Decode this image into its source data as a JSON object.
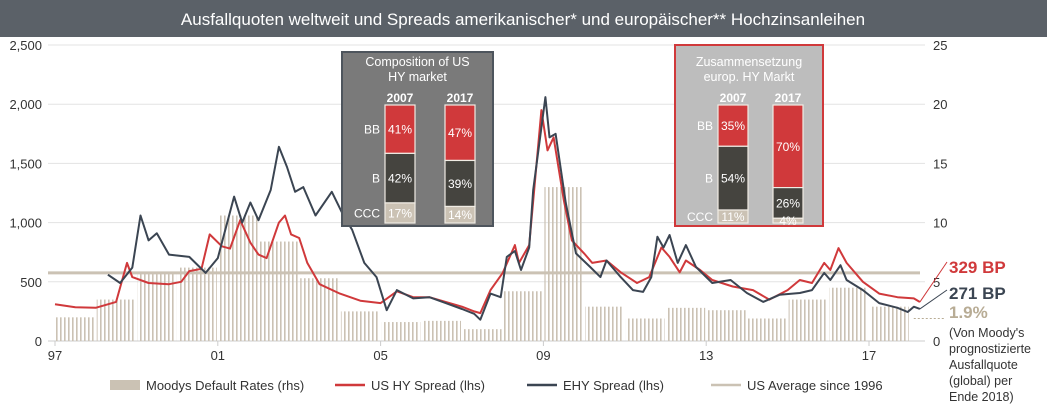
{
  "chart_data": {
    "type": "line",
    "title": "Ausfallquoten weltweit und Spreads amerikanischer* und europäischer** Hochzinsanleihen",
    "y_left": {
      "ylim": [
        0,
        2500
      ],
      "ticks": [
        "0",
        "500",
        "1,000",
        "1,500",
        "2,000",
        "2,500"
      ]
    },
    "y_right": {
      "ylim": [
        0,
        25
      ],
      "ticks": [
        "0",
        "5",
        "10",
        "15",
        "20",
        "25"
      ]
    },
    "x": {
      "xlim": [
        1997,
        2018.4
      ],
      "ticks": [
        {
          "v": 1997,
          "label": "97"
        },
        {
          "v": 2001,
          "label": "01"
        },
        {
          "v": 2005,
          "label": "05"
        },
        {
          "v": 2009,
          "label": "09"
        },
        {
          "v": 2013,
          "label": "13"
        },
        {
          "v": 2017,
          "label": "17"
        }
      ]
    },
    "grid": true,
    "legend_position": "bottom",
    "series": [
      {
        "name": "Moodys Default Rates (rhs)",
        "type": "bar",
        "axis": "right",
        "color": "#cbc2b4",
        "years": [
          1997,
          1998,
          1999,
          2000,
          2001,
          2002,
          2003,
          2004,
          2005,
          2006,
          2007,
          2008,
          2009,
          2010,
          2011,
          2012,
          2013,
          2014,
          2015,
          2016,
          2017
        ],
        "values": [
          2.0,
          3.5,
          5.7,
          6.2,
          10.6,
          8.4,
          5.3,
          2.5,
          1.6,
          1.7,
          1.0,
          4.2,
          13.0,
          2.9,
          1.9,
          2.8,
          2.6,
          1.9,
          3.5,
          4.5,
          2.9
        ]
      },
      {
        "name": "US HY Spread (lhs)",
        "type": "line",
        "axis": "left",
        "color": "#d0393b",
        "points": [
          [
            1997.0,
            310
          ],
          [
            1997.5,
            285
          ],
          [
            1998.0,
            280
          ],
          [
            1998.5,
            330
          ],
          [
            1998.77,
            660
          ],
          [
            1998.9,
            540
          ],
          [
            1999.3,
            490
          ],
          [
            1999.8,
            480
          ],
          [
            2000.1,
            500
          ],
          [
            2000.3,
            590
          ],
          [
            2000.6,
            610
          ],
          [
            2000.8,
            900
          ],
          [
            2001.1,
            800
          ],
          [
            2001.3,
            780
          ],
          [
            2001.55,
            1020
          ],
          [
            2001.8,
            830
          ],
          [
            2002.0,
            730
          ],
          [
            2002.2,
            700
          ],
          [
            2002.5,
            1000
          ],
          [
            2002.65,
            1060
          ],
          [
            2002.8,
            900
          ],
          [
            2003.0,
            870
          ],
          [
            2003.2,
            660
          ],
          [
            2003.5,
            480
          ],
          [
            2004.0,
            400
          ],
          [
            2004.5,
            340
          ],
          [
            2005.0,
            320
          ],
          [
            2005.4,
            420
          ],
          [
            2005.8,
            370
          ],
          [
            2006.2,
            370
          ],
          [
            2006.6,
            330
          ],
          [
            2007.0,
            290
          ],
          [
            2007.3,
            250
          ],
          [
            2007.45,
            236
          ],
          [
            2007.7,
            430
          ],
          [
            2008.0,
            575
          ],
          [
            2008.3,
            810
          ],
          [
            2008.4,
            660
          ],
          [
            2008.65,
            810
          ],
          [
            2008.95,
            1950
          ],
          [
            2009.1,
            1610
          ],
          [
            2009.25,
            1720
          ],
          [
            2009.5,
            1190
          ],
          [
            2009.7,
            850
          ],
          [
            2010.0,
            740
          ],
          [
            2010.2,
            660
          ],
          [
            2010.55,
            680
          ],
          [
            2010.9,
            580
          ],
          [
            2011.3,
            490
          ],
          [
            2011.6,
            540
          ],
          [
            2011.9,
            790
          ],
          [
            2012.1,
            710
          ],
          [
            2012.35,
            580
          ],
          [
            2012.5,
            680
          ],
          [
            2012.85,
            600
          ],
          [
            2013.15,
            515
          ],
          [
            2013.65,
            460
          ],
          [
            2014.15,
            430
          ],
          [
            2014.55,
            350
          ],
          [
            2015.0,
            430
          ],
          [
            2015.3,
            515
          ],
          [
            2015.6,
            490
          ],
          [
            2015.9,
            660
          ],
          [
            2016.05,
            600
          ],
          [
            2016.25,
            785
          ],
          [
            2016.45,
            660
          ],
          [
            2016.85,
            500
          ],
          [
            2017.25,
            400
          ],
          [
            2017.7,
            370
          ],
          [
            2018.1,
            360
          ],
          [
            2018.25,
            329
          ]
        ]
      },
      {
        "name": "EHY Spread (lhs)",
        "type": "line",
        "axis": "left",
        "color": "#3b4552",
        "points": [
          [
            1998.3,
            560
          ],
          [
            1998.6,
            490
          ],
          [
            1998.9,
            620
          ],
          [
            1999.1,
            1060
          ],
          [
            1999.3,
            850
          ],
          [
            1999.5,
            910
          ],
          [
            1999.8,
            730
          ],
          [
            2000.3,
            710
          ],
          [
            2000.7,
            575
          ],
          [
            2001.0,
            700
          ],
          [
            2001.4,
            1220
          ],
          [
            2001.6,
            1000
          ],
          [
            2001.8,
            1170
          ],
          [
            2002.0,
            1020
          ],
          [
            2002.3,
            1275
          ],
          [
            2002.5,
            1640
          ],
          [
            2002.7,
            1470
          ],
          [
            2002.9,
            1260
          ],
          [
            2003.1,
            1300
          ],
          [
            2003.4,
            1060
          ],
          [
            2003.8,
            1260
          ],
          [
            2004.1,
            1050
          ],
          [
            2004.3,
            940
          ],
          [
            2004.6,
            660
          ],
          [
            2004.9,
            540
          ],
          [
            2005.15,
            260
          ],
          [
            2005.4,
            430
          ],
          [
            2005.8,
            360
          ],
          [
            2006.2,
            370
          ],
          [
            2006.6,
            320
          ],
          [
            2007.0,
            270
          ],
          [
            2007.3,
            230
          ],
          [
            2007.45,
            180
          ],
          [
            2007.7,
            400
          ],
          [
            2007.95,
            370
          ],
          [
            2008.1,
            710
          ],
          [
            2008.3,
            760
          ],
          [
            2008.45,
            600
          ],
          [
            2008.65,
            790
          ],
          [
            2008.75,
            1275
          ],
          [
            2009.05,
            2060
          ],
          [
            2009.15,
            1720
          ],
          [
            2009.3,
            1750
          ],
          [
            2009.55,
            1165
          ],
          [
            2009.8,
            740
          ],
          [
            2010.15,
            625
          ],
          [
            2010.4,
            540
          ],
          [
            2010.55,
            680
          ],
          [
            2010.9,
            540
          ],
          [
            2011.2,
            430
          ],
          [
            2011.45,
            415
          ],
          [
            2011.65,
            540
          ],
          [
            2011.8,
            880
          ],
          [
            2011.95,
            790
          ],
          [
            2012.1,
            895
          ],
          [
            2012.3,
            660
          ],
          [
            2012.5,
            810
          ],
          [
            2012.75,
            625
          ],
          [
            2013.15,
            490
          ],
          [
            2013.6,
            515
          ],
          [
            2014.0,
            405
          ],
          [
            2014.4,
            330
          ],
          [
            2014.8,
            390
          ],
          [
            2015.3,
            405
          ],
          [
            2015.6,
            430
          ],
          [
            2015.9,
            575
          ],
          [
            2016.05,
            515
          ],
          [
            2016.3,
            640
          ],
          [
            2016.45,
            515
          ],
          [
            2016.85,
            430
          ],
          [
            2017.25,
            320
          ],
          [
            2017.7,
            280
          ],
          [
            2017.95,
            245
          ],
          [
            2018.1,
            290
          ],
          [
            2018.25,
            271
          ]
        ]
      },
      {
        "name": "US Average since 1996",
        "type": "hline",
        "axis": "left",
        "color": "#cbc2b4",
        "value": 575
      }
    ],
    "annotations": {
      "us_hy_end": "329 BP",
      "ehy_end": "271 BP",
      "default_forecast": "1.9%",
      "default_forecast_value": 1.9,
      "forecast_note": [
        "(Von Moody's",
        "prognostizierte",
        "Ausfallquote",
        "(global) per",
        "Ende 2018)"
      ]
    },
    "insets": [
      {
        "title": [
          "Composition of US",
          "HY market"
        ],
        "rows": [
          "BB",
          "B",
          "CCC"
        ],
        "bars": [
          {
            "year": "2007",
            "BB": 41,
            "B": 42,
            "CCC": 17,
            "labels": [
              "41%",
              "42%",
              "17%"
            ]
          },
          {
            "year": "2017",
            "BB": 47,
            "B": 39,
            "CCC": 14,
            "labels": [
              "47%",
              "39%",
              "14%"
            ]
          }
        ]
      },
      {
        "title": [
          "Zusammensetzung",
          "europ. HY Markt"
        ],
        "rows": [
          "BB",
          "B",
          "CCC"
        ],
        "bars": [
          {
            "year": "2007",
            "BB": 35,
            "B": 54,
            "CCC": 11,
            "labels": [
              "35%",
              "54%",
              "11%"
            ]
          },
          {
            "year": "2017",
            "BB": 70,
            "B": 26,
            "CCC": 4,
            "labels": [
              "70%",
              "26%",
              "4%"
            ]
          }
        ]
      }
    ]
  },
  "colors": {
    "title_bar": "#5b6168",
    "red": "#d0393b",
    "dark": "#3b4552",
    "beige": "#cbc2b4",
    "b_segment": "#45443f"
  }
}
